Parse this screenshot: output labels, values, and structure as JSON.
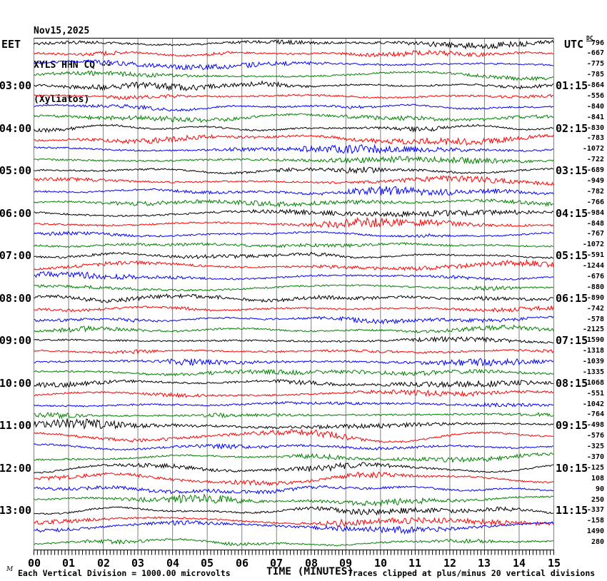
{
  "header": {
    "date": "Nov15,2025",
    "station": "XYLS HHN CQ --",
    "location": "(Xyliatos)"
  },
  "axis": {
    "left_timezone": "EET",
    "right_timezone": "UTC",
    "dc_header": "DC",
    "x_axis_title": "TIME (MINUTES)",
    "minute_labels": [
      "00",
      "01",
      "02",
      "03",
      "04",
      "05",
      "06",
      "07",
      "08",
      "09",
      "10",
      "11",
      "12",
      "13",
      "14",
      "15"
    ],
    "left_hour_labels": [
      "03:00",
      "04:00",
      "05:00",
      "06:00",
      "07:00",
      "08:00",
      "09:00",
      "10:00",
      "11:00",
      "12:00",
      "13:00"
    ],
    "right_hour_labels": [
      "01:15",
      "02:15",
      "03:15",
      "04:15",
      "05:15",
      "06:15",
      "07:15",
      "08:15",
      "09:15",
      "10:15",
      "11:15"
    ]
  },
  "footer": {
    "watermark": "M",
    "division_note": "Each Vertical Division = 1000.00 microvolts",
    "clip_note": "Traces clipped at plus/minus 20 vertical divisions"
  },
  "chart_data": {
    "type": "line",
    "variant": "helicorder-seismogram",
    "title": "XYLS HHN CQ -- (Xyliatos) Nov15,2025",
    "xlabel": "TIME (MINUTES)",
    "x_range_minutes": [
      0,
      15
    ],
    "rows": 48,
    "row_duration_minutes": 15,
    "rows_per_hour": 4,
    "hour_label_row_start_index": 4,
    "trace_color_cycle": [
      "#000000",
      "#ff0000",
      "#0000ff",
      "#008000"
    ],
    "grid_color": "#808080",
    "frame_color": "#000000",
    "left_hour_labels_eet": [
      "03:00",
      "04:00",
      "05:00",
      "06:00",
      "07:00",
      "08:00",
      "09:00",
      "10:00",
      "11:00",
      "12:00",
      "13:00"
    ],
    "right_hour_labels_utc": [
      "01:15",
      "02:15",
      "03:15",
      "04:15",
      "05:15",
      "06:15",
      "07:15",
      "08:15",
      "09:15",
      "10:15",
      "11:15"
    ],
    "dc_values": [
      796,
      -667,
      -775,
      -785,
      -864,
      -556,
      -840,
      -841,
      -830,
      -783,
      -1072,
      -722,
      -689,
      -949,
      -782,
      -766,
      -984,
      -848,
      -767,
      -1072,
      -591,
      -1244,
      -676,
      -880,
      -890,
      -742,
      -578,
      -2125,
      -1590,
      -1318,
      -1039,
      -1335,
      -1068,
      -551,
      -1042,
      -764,
      -498,
      -576,
      -325,
      -370,
      -125,
      108,
      90,
      250,
      -337,
      -158,
      1490,
      280
    ],
    "vertical_division_microvolts": 1000.0,
    "clip_divisions": 20
  }
}
